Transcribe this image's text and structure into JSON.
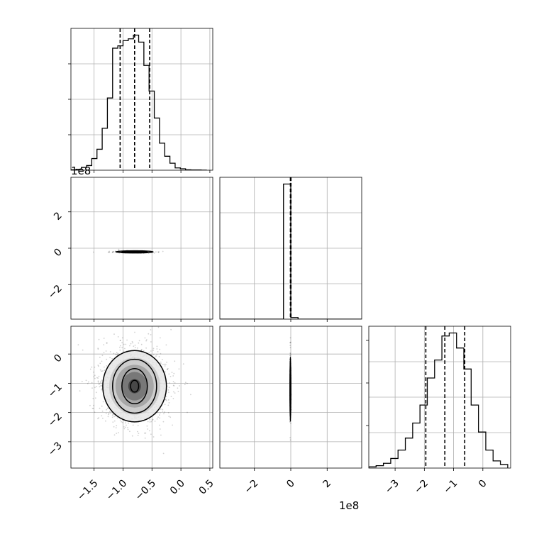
{
  "chart_data": {
    "type": "corner",
    "grid": true,
    "parameters": [
      {
        "range": [
          -1.9,
          0.55
        ],
        "ticks": [
          -1.5,
          -1.0,
          -0.5,
          0.0,
          0.5
        ],
        "tick_labels": [
          "−1.5",
          "−1.0",
          "−0.5",
          "0.0",
          "0.5"
        ]
      },
      {
        "range": [
          -390000000.0,
          390000000.0
        ],
        "ticks": [
          -200000000.0,
          0,
          200000000.0
        ],
        "tick_labels": [
          "−2",
          "0",
          "2"
        ],
        "offset_label": "1e8"
      },
      {
        "range": [
          -3.9,
          0.95
        ],
        "ticks": [
          -3,
          -2,
          -1,
          0
        ],
        "tick_labels": [
          "−3",
          "−2",
          "−1",
          "0"
        ]
      }
    ],
    "y_ticks_row1": {
      "ticks": [
        -200000000.0,
        0,
        200000000.0
      ],
      "tick_labels": [
        "−2",
        "0",
        "2"
      ],
      "offset_label": "1e8"
    },
    "y_ticks_row2": {
      "ticks": [
        -3,
        -2,
        -1,
        0
      ],
      "tick_labels": [
        "−3",
        "−2",
        "−1",
        "0"
      ]
    },
    "histograms": [
      {
        "param": 0,
        "bin_edges": [
          -1.9,
          -1.81,
          -1.72,
          -1.63,
          -1.54,
          -1.45,
          -1.36,
          -1.27,
          -1.18,
          -1.09,
          -1.0,
          -0.91,
          -0.82,
          -0.73,
          -0.64,
          -0.55,
          -0.46,
          -0.37,
          -0.28,
          -0.19,
          -0.1,
          -0.01,
          0.08,
          0.17,
          0.26,
          0.35,
          0.44
        ],
        "counts": [
          1,
          2,
          6,
          10,
          25,
          45,
          90,
          155,
          262,
          267,
          278,
          282,
          290,
          275,
          225,
          170,
          112,
          58,
          30,
          15,
          5,
          3,
          1,
          0.5,
          0.5,
          0.2
        ],
        "quantiles": [
          -1.05,
          -0.8,
          -0.54
        ]
      },
      {
        "param": 1,
        "bin_edges": [
          -390000000.0,
          -40000000.0,
          0,
          40000000.0,
          390000000.0
        ],
        "counts": [
          0.0,
          1.0,
          0.012,
          0.0
        ],
        "quantiles": [
          -2000000.0,
          0.0,
          1000000.0
        ]
      },
      {
        "param": 2,
        "bin_edges": [
          -3.9,
          -3.65,
          -3.4,
          -3.15,
          -2.9,
          -2.65,
          -2.4,
          -2.15,
          -1.9,
          -1.65,
          -1.4,
          -1.15,
          -0.9,
          -0.65,
          -0.4,
          -0.15,
          0.1,
          0.35,
          0.6,
          0.85
        ],
        "counts": [
          2,
          4,
          8,
          16,
          30,
          50,
          75,
          105,
          150,
          180,
          220,
          225,
          200,
          165,
          105,
          60,
          30,
          12,
          6
        ],
        "quantiles": [
          -1.95,
          -1.3,
          -0.62
        ]
      }
    ],
    "joint": [
      {
        "x": 0,
        "y": 1,
        "center": [
          -0.8,
          -20000000.0
        ],
        "contours": [
          [
            0.32,
            6000000.0
          ],
          [
            0.22,
            4000000.0
          ],
          [
            0.13,
            2500000.0
          ]
        ]
      },
      {
        "x": 0,
        "y": 2,
        "center": [
          -0.8,
          -1.1
        ],
        "contours": [
          [
            0.55,
            1.22
          ],
          [
            0.38,
            0.92
          ],
          [
            0.22,
            0.6
          ],
          [
            0.07,
            0.2
          ]
        ]
      },
      {
        "x": 1,
        "y": 2,
        "center": [
          -2000000.0,
          -1.2
        ],
        "contours": [
          [
            2500000.0,
            1.1
          ],
          [
            1600000.0,
            0.75
          ],
          [
            800000.0,
            0.42
          ]
        ]
      }
    ]
  }
}
